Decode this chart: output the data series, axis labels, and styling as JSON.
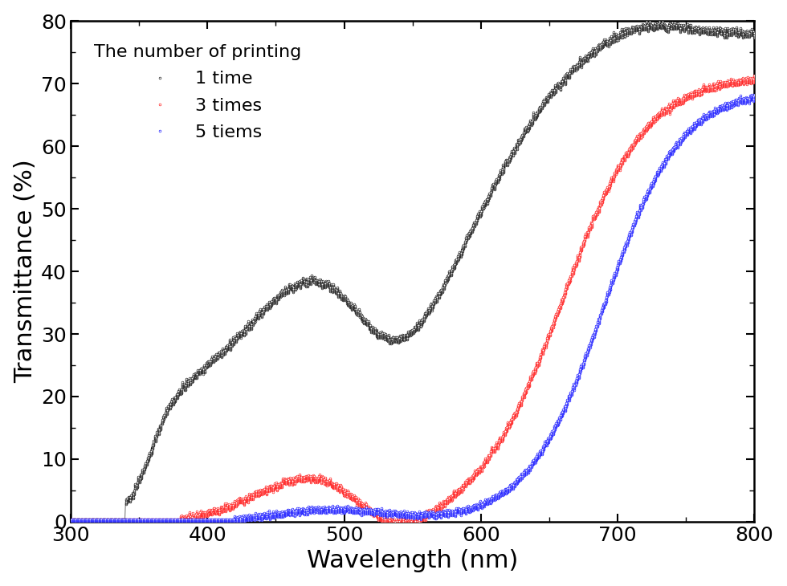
{
  "title": "",
  "xlabel": "Wavelength (nm)",
  "ylabel": "Transmittance (%)",
  "xlim": [
    300,
    800
  ],
  "ylim": [
    0,
    80
  ],
  "xticks": [
    300,
    400,
    500,
    600,
    700,
    800
  ],
  "yticks": [
    0,
    10,
    20,
    30,
    40,
    50,
    60,
    70,
    80
  ],
  "legend_title": "The number of printing",
  "legend_entries": [
    "1 time",
    "3 times",
    "5 tiems"
  ],
  "colors": [
    "black",
    "red",
    "blue"
  ],
  "background_color": "white",
  "markersize": 2.0,
  "linewidth": 0.5,
  "xlabel_fontsize": 22,
  "ylabel_fontsize": 22,
  "tick_fontsize": 18,
  "legend_fontsize": 16,
  "legend_title_fontsize": 16
}
